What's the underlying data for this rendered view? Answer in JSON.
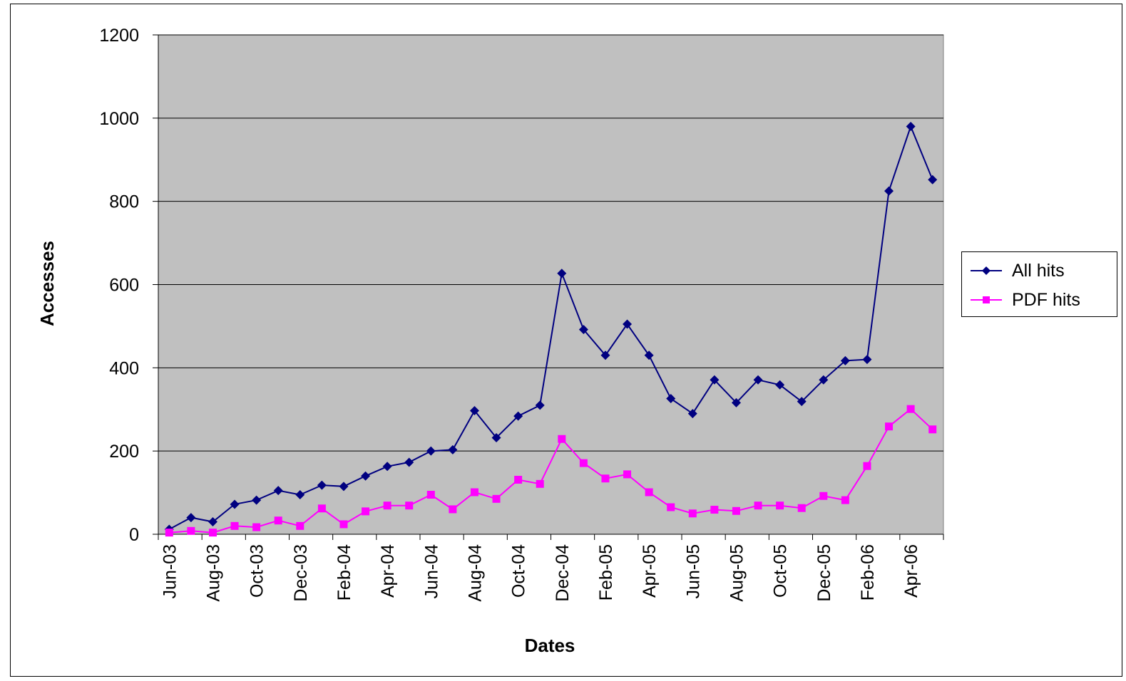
{
  "chart_data": {
    "type": "line",
    "title": "",
    "xlabel": "Dates",
    "ylabel": "Accesses",
    "ylim": [
      0,
      1200
    ],
    "yticks": [
      0,
      200,
      400,
      600,
      800,
      1000,
      1200
    ],
    "grid": "horizontal",
    "legend_position": "right",
    "background": "#c0c0c0",
    "x": [
      "Jun-03",
      "Jul-03",
      "Aug-03",
      "Sep-03",
      "Oct-03",
      "Nov-03",
      "Dec-03",
      "Jan-04",
      "Feb-04",
      "Mar-04",
      "Apr-04",
      "May-04",
      "Jun-04",
      "Jul-04",
      "Aug-04",
      "Sep-04",
      "Oct-04",
      "Nov-04",
      "Dec-04",
      "Jan-05",
      "Feb-05",
      "Mar-05",
      "Apr-05",
      "May-05",
      "Jun-05",
      "Jul-05",
      "Aug-05",
      "Sep-05",
      "Oct-05",
      "Nov-05",
      "Dec-05",
      "Jan-06",
      "Feb-06",
      "Mar-06",
      "Apr-06",
      "May-06"
    ],
    "x_tick_labels": [
      "Jun-03",
      "Aug-03",
      "Oct-03",
      "Dec-03",
      "Feb-04",
      "Apr-04",
      "Jun-04",
      "Aug-04",
      "Oct-04",
      "Dec-04",
      "Feb-05",
      "Apr-05",
      "Jun-05",
      "Aug-05",
      "Oct-05",
      "Dec-05",
      "Feb-06",
      "Apr-06"
    ],
    "series": [
      {
        "name": "All hits",
        "color": "#000080",
        "marker": "diamond",
        "values": [
          12,
          40,
          30,
          72,
          82,
          105,
          95,
          118,
          115,
          140,
          163,
          173,
          200,
          203,
          297,
          232,
          284,
          310,
          627,
          492,
          430,
          505,
          430,
          326,
          290,
          371,
          316,
          371,
          359,
          319,
          371,
          417,
          420,
          825,
          980,
          852
        ]
      },
      {
        "name": "PDF hits",
        "color": "#ff00ff",
        "marker": "square",
        "values": [
          4,
          8,
          4,
          20,
          17,
          33,
          20,
          62,
          24,
          55,
          69,
          69,
          95,
          60,
          101,
          85,
          131,
          121,
          229,
          171,
          134,
          144,
          101,
          65,
          50,
          59,
          56,
          69,
          69,
          63,
          92,
          82,
          164,
          259,
          301,
          252
        ]
      }
    ]
  }
}
